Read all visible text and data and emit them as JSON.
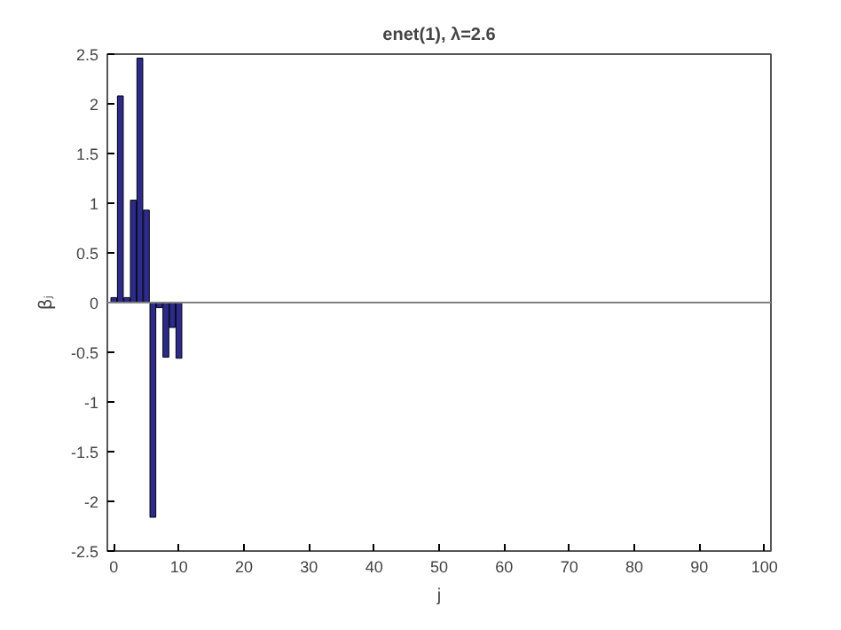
{
  "chart_data": {
    "type": "bar",
    "title": "enet(1), λ=2.6",
    "xlabel": "j",
    "ylabel": "βⱼ",
    "x": [
      0,
      1,
      2,
      3,
      4,
      5,
      6,
      7,
      8,
      9,
      10
    ],
    "values": [
      0.05,
      2.08,
      0.05,
      1.03,
      2.46,
      0.93,
      -2.16,
      -0.05,
      -0.55,
      -0.25,
      -0.56
    ],
    "color": "#2c2a8f",
    "xlim": [
      -1,
      101
    ],
    "xticks": [
      0,
      10,
      20,
      30,
      40,
      50,
      60,
      70,
      80,
      90,
      100
    ],
    "ylim": [
      -2.5,
      2.5
    ],
    "yticks": [
      -2.5,
      -2,
      -1.5,
      -1,
      -0.5,
      0,
      0.5,
      1,
      1.5,
      2,
      2.5
    ],
    "ref_lines": [
      {
        "axis": "y",
        "value": 0,
        "color": "#808080"
      }
    ],
    "grid": false
  }
}
